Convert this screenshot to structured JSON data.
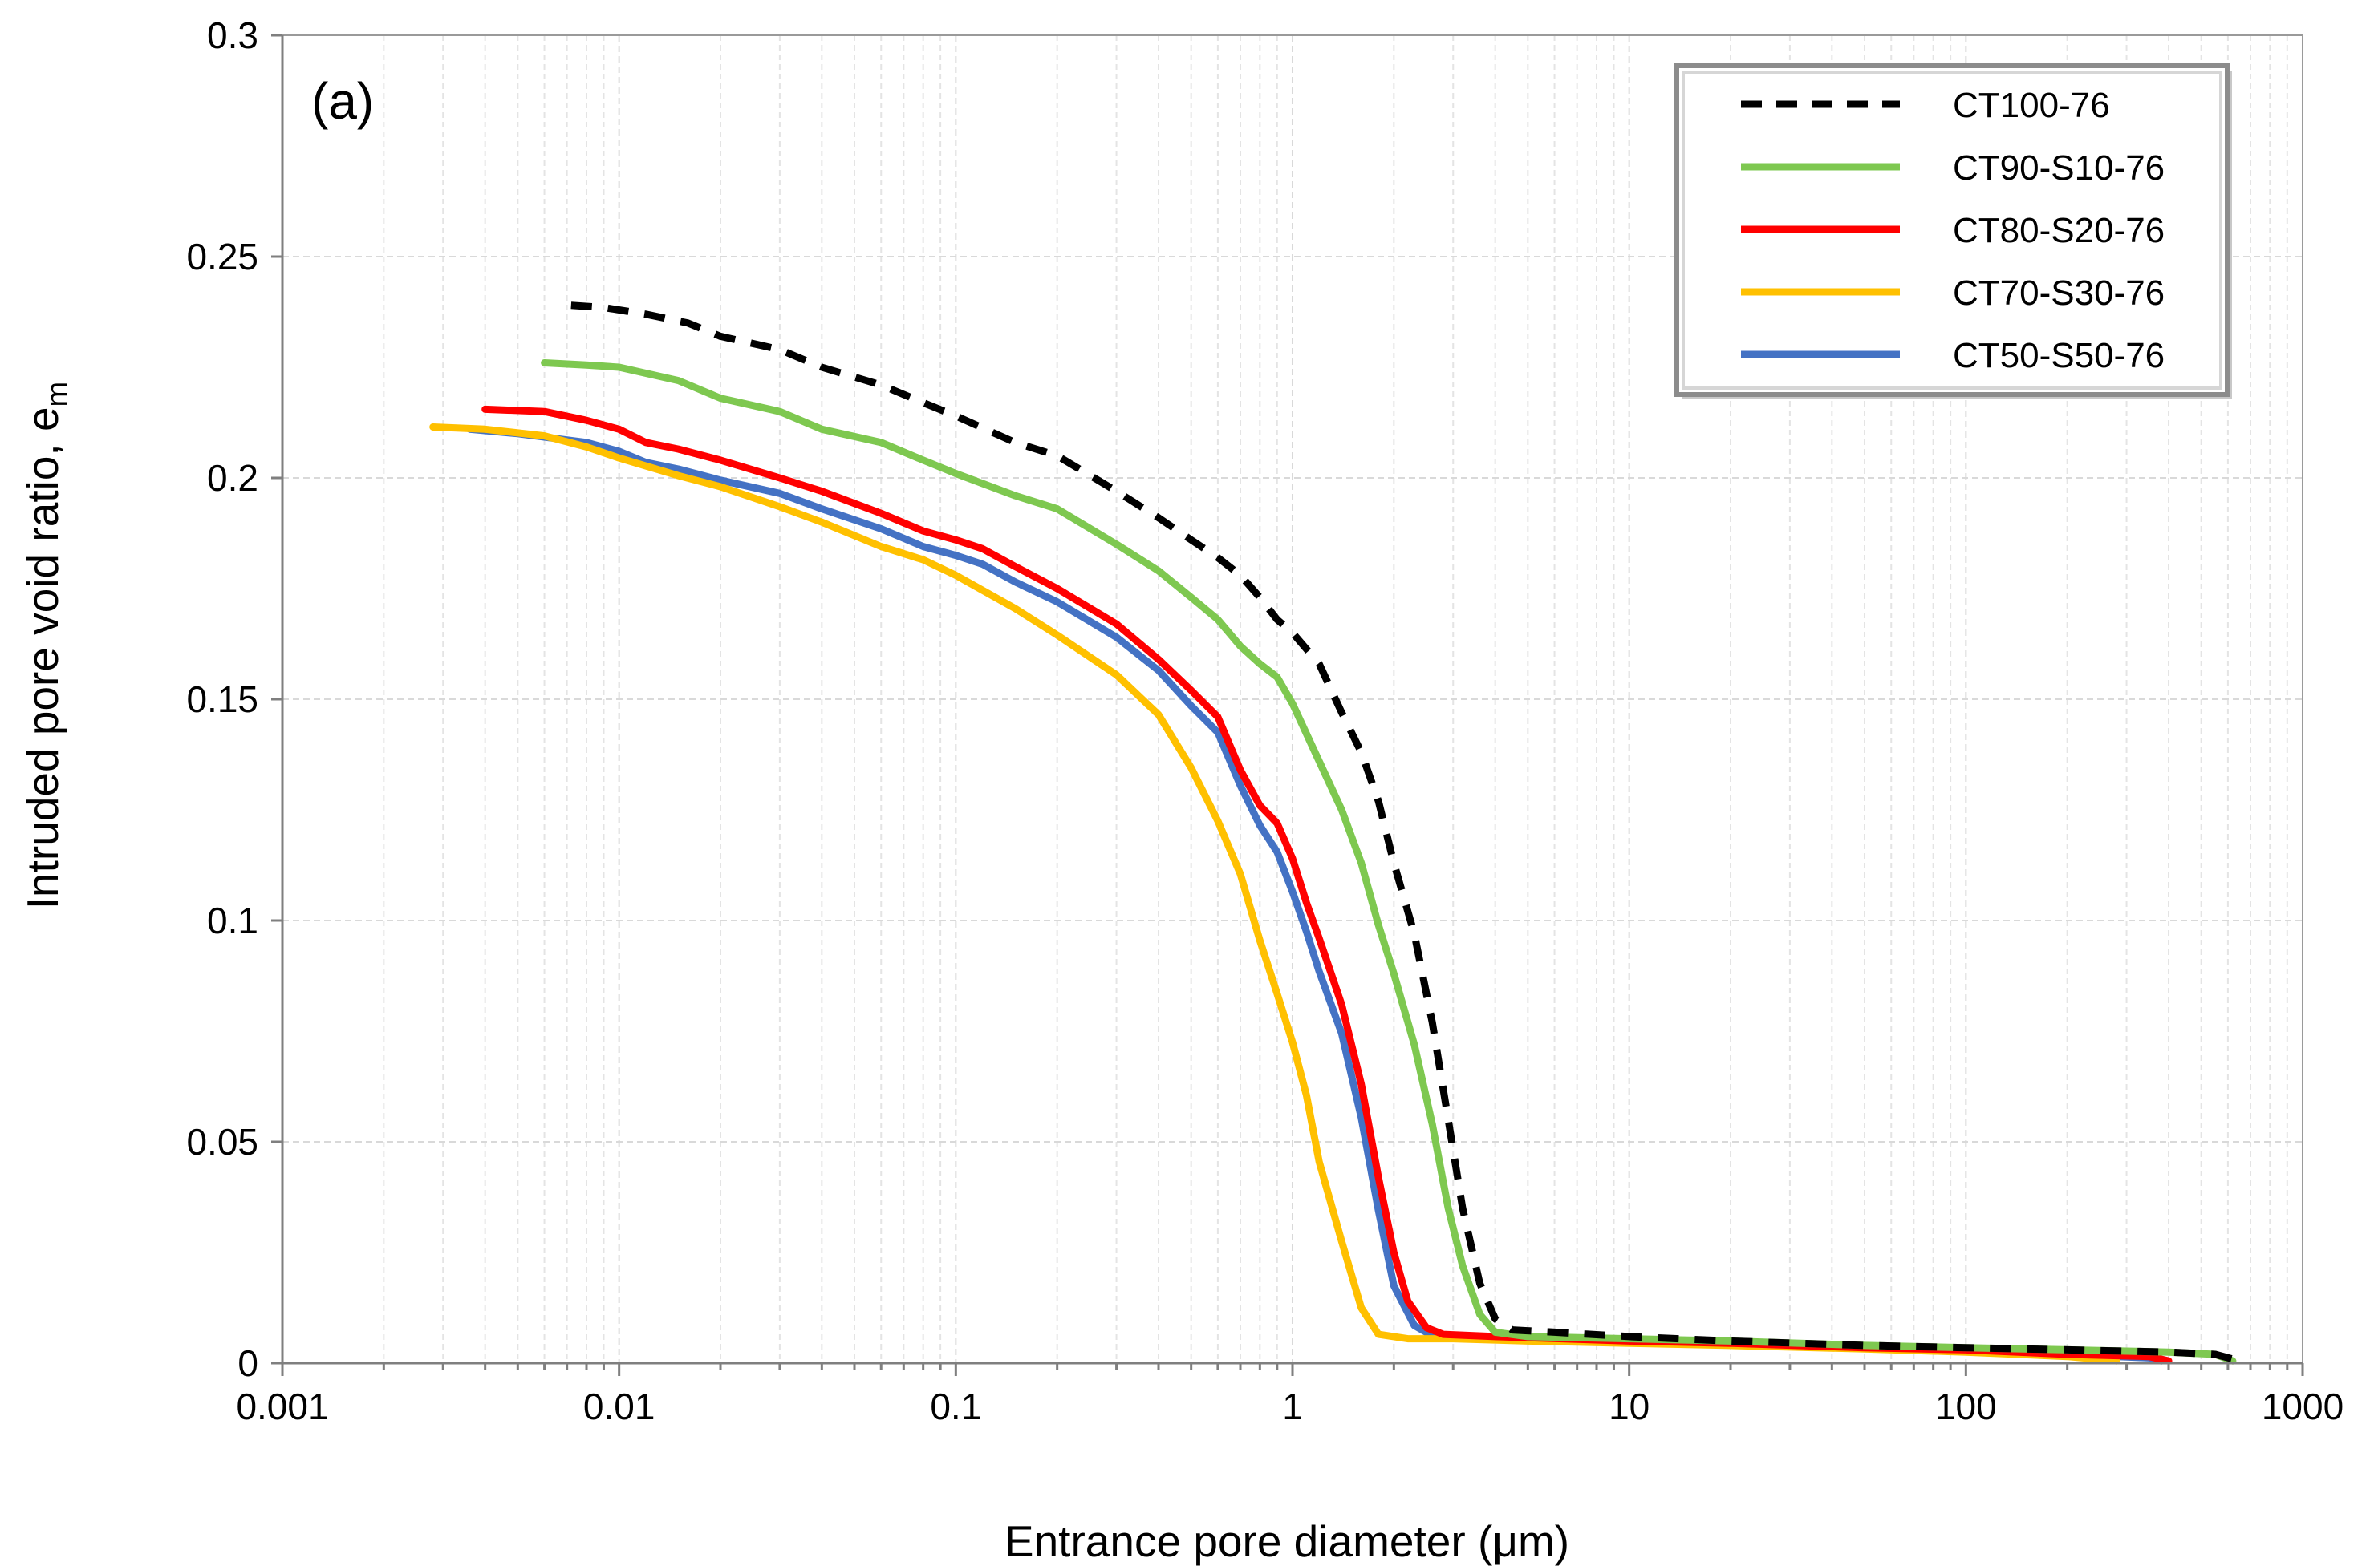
{
  "chart_data": {
    "type": "line",
    "panel_label": "(a)",
    "xlabel": "Entrance pore diameter (μm)",
    "ylabel_main": "Intruded pore void ratio, e",
    "ylabel_sub": "m",
    "xscale": "log",
    "xlim": [
      0.001,
      1000
    ],
    "ylim": [
      0,
      0.3
    ],
    "xticks": [
      0.001,
      0.01,
      0.1,
      1,
      10,
      100,
      1000
    ],
    "xtick_labels": [
      "0.001",
      "0.01",
      "0.1",
      "1",
      "10",
      "100",
      "1000"
    ],
    "yticks": [
      0,
      0.05,
      0.1,
      0.15,
      0.2,
      0.25,
      0.3
    ],
    "ytick_labels": [
      "0",
      "0.05",
      "0.1",
      "0.15",
      "0.2",
      "0.25",
      "0.3"
    ],
    "grid": true,
    "legend_position": "top-right",
    "series": [
      {
        "name": "CT100-76",
        "color": "#000000",
        "dashed": true,
        "points": [
          [
            0.0072,
            0.239
          ],
          [
            0.009,
            0.2385
          ],
          [
            0.012,
            0.237
          ],
          [
            0.016,
            0.235
          ],
          [
            0.02,
            0.232
          ],
          [
            0.03,
            0.229
          ],
          [
            0.04,
            0.225
          ],
          [
            0.06,
            0.221
          ],
          [
            0.08,
            0.217
          ],
          [
            0.1,
            0.214
          ],
          [
            0.15,
            0.208
          ],
          [
            0.2,
            0.205
          ],
          [
            0.3,
            0.197
          ],
          [
            0.4,
            0.191
          ],
          [
            0.5,
            0.186
          ],
          [
            0.6,
            0.182
          ],
          [
            0.7,
            0.178
          ],
          [
            0.8,
            0.173
          ],
          [
            0.9,
            0.168
          ],
          [
            1.0,
            0.165
          ],
          [
            1.2,
            0.158
          ],
          [
            1.4,
            0.147
          ],
          [
            1.6,
            0.138
          ],
          [
            1.8,
            0.127
          ],
          [
            2.0,
            0.113
          ],
          [
            2.3,
            0.097
          ],
          [
            2.6,
            0.077
          ],
          [
            2.9,
            0.055
          ],
          [
            3.2,
            0.035
          ],
          [
            3.6,
            0.018
          ],
          [
            4.0,
            0.01
          ],
          [
            4.5,
            0.0075
          ],
          [
            6,
            0.007
          ],
          [
            10,
            0.006
          ],
          [
            20,
            0.005
          ],
          [
            50,
            0.004
          ],
          [
            100,
            0.0035
          ],
          [
            200,
            0.003
          ],
          [
            400,
            0.0025
          ],
          [
            550,
            0.002
          ],
          [
            650,
            0.0005
          ]
        ]
      },
      {
        "name": "CT90-S10-76",
        "color": "#7ec850",
        "dashed": false,
        "points": [
          [
            0.006,
            0.226
          ],
          [
            0.008,
            0.2255
          ],
          [
            0.01,
            0.225
          ],
          [
            0.015,
            0.222
          ],
          [
            0.02,
            0.218
          ],
          [
            0.03,
            0.215
          ],
          [
            0.04,
            0.211
          ],
          [
            0.06,
            0.208
          ],
          [
            0.08,
            0.204
          ],
          [
            0.1,
            0.201
          ],
          [
            0.15,
            0.196
          ],
          [
            0.2,
            0.193
          ],
          [
            0.3,
            0.185
          ],
          [
            0.4,
            0.179
          ],
          [
            0.5,
            0.173
          ],
          [
            0.6,
            0.168
          ],
          [
            0.7,
            0.162
          ],
          [
            0.8,
            0.158
          ],
          [
            0.9,
            0.155
          ],
          [
            1.0,
            0.149
          ],
          [
            1.2,
            0.136
          ],
          [
            1.4,
            0.125
          ],
          [
            1.6,
            0.113
          ],
          [
            1.8,
            0.099
          ],
          [
            2.0,
            0.088
          ],
          [
            2.3,
            0.072
          ],
          [
            2.6,
            0.054
          ],
          [
            2.9,
            0.035
          ],
          [
            3.2,
            0.022
          ],
          [
            3.6,
            0.011
          ],
          [
            4.0,
            0.007
          ],
          [
            5,
            0.006
          ],
          [
            10,
            0.0055
          ],
          [
            20,
            0.005
          ],
          [
            50,
            0.004
          ],
          [
            100,
            0.0035
          ],
          [
            200,
            0.003
          ],
          [
            400,
            0.0025
          ],
          [
            550,
            0.002
          ],
          [
            620,
            0.0005
          ]
        ]
      },
      {
        "name": "CT80-S20-76",
        "color": "#ff0000",
        "dashed": false,
        "points": [
          [
            0.004,
            0.2155
          ],
          [
            0.006,
            0.215
          ],
          [
            0.008,
            0.213
          ],
          [
            0.01,
            0.211
          ],
          [
            0.012,
            0.208
          ],
          [
            0.015,
            0.2065
          ],
          [
            0.02,
            0.204
          ],
          [
            0.03,
            0.2
          ],
          [
            0.04,
            0.197
          ],
          [
            0.06,
            0.192
          ],
          [
            0.08,
            0.188
          ],
          [
            0.1,
            0.186
          ],
          [
            0.12,
            0.184
          ],
          [
            0.15,
            0.18
          ],
          [
            0.2,
            0.175
          ],
          [
            0.3,
            0.167
          ],
          [
            0.4,
            0.159
          ],
          [
            0.5,
            0.152
          ],
          [
            0.6,
            0.146
          ],
          [
            0.7,
            0.134
          ],
          [
            0.8,
            0.126
          ],
          [
            0.9,
            0.122
          ],
          [
            1.0,
            0.114
          ],
          [
            1.1,
            0.104
          ],
          [
            1.2,
            0.096
          ],
          [
            1.4,
            0.081
          ],
          [
            1.6,
            0.063
          ],
          [
            1.8,
            0.042
          ],
          [
            2.0,
            0.025
          ],
          [
            2.2,
            0.014
          ],
          [
            2.5,
            0.008
          ],
          [
            2.8,
            0.0065
          ],
          [
            4,
            0.006
          ],
          [
            10,
            0.005
          ],
          [
            20,
            0.0045
          ],
          [
            50,
            0.0035
          ],
          [
            100,
            0.003
          ],
          [
            200,
            0.002
          ],
          [
            350,
            0.0015
          ],
          [
            400,
            0.0005
          ]
        ]
      },
      {
        "name": "CT70-S30-76",
        "color": "#ffc000",
        "dashed": false,
        "points": [
          [
            0.0028,
            0.2115
          ],
          [
            0.004,
            0.211
          ],
          [
            0.006,
            0.2095
          ],
          [
            0.008,
            0.207
          ],
          [
            0.01,
            0.2045
          ],
          [
            0.015,
            0.2005
          ],
          [
            0.02,
            0.198
          ],
          [
            0.03,
            0.1935
          ],
          [
            0.04,
            0.19
          ],
          [
            0.06,
            0.1845
          ],
          [
            0.08,
            0.1815
          ],
          [
            0.1,
            0.178
          ],
          [
            0.15,
            0.1705
          ],
          [
            0.2,
            0.1645
          ],
          [
            0.3,
            0.1555
          ],
          [
            0.4,
            0.1465
          ],
          [
            0.5,
            0.1345
          ],
          [
            0.6,
            0.1225
          ],
          [
            0.7,
            0.1105
          ],
          [
            0.8,
            0.0955
          ],
          [
            0.9,
            0.0835
          ],
          [
            1.0,
            0.0725
          ],
          [
            1.1,
            0.0605
          ],
          [
            1.2,
            0.0455
          ],
          [
            1.4,
            0.0275
          ],
          [
            1.6,
            0.0125
          ],
          [
            1.8,
            0.0065
          ],
          [
            2.2,
            0.0055
          ],
          [
            3,
            0.0055
          ],
          [
            5,
            0.005
          ],
          [
            10,
            0.0045
          ],
          [
            20,
            0.004
          ],
          [
            50,
            0.0032
          ],
          [
            100,
            0.0025
          ],
          [
            200,
            0.0015
          ],
          [
            280,
            0.0005
          ]
        ]
      },
      {
        "name": "CT50-S50-76",
        "color": "#4472c4",
        "dashed": false,
        "points": [
          [
            0.0036,
            0.211
          ],
          [
            0.005,
            0.21
          ],
          [
            0.008,
            0.208
          ],
          [
            0.01,
            0.206
          ],
          [
            0.012,
            0.2035
          ],
          [
            0.015,
            0.202
          ],
          [
            0.02,
            0.1995
          ],
          [
            0.03,
            0.1965
          ],
          [
            0.04,
            0.193
          ],
          [
            0.06,
            0.1885
          ],
          [
            0.08,
            0.1845
          ],
          [
            0.1,
            0.1825
          ],
          [
            0.12,
            0.1805
          ],
          [
            0.15,
            0.1765
          ],
          [
            0.2,
            0.172
          ],
          [
            0.3,
            0.164
          ],
          [
            0.4,
            0.1565
          ],
          [
            0.5,
            0.1485
          ],
          [
            0.6,
            0.1425
          ],
          [
            0.7,
            0.1305
          ],
          [
            0.8,
            0.1215
          ],
          [
            0.9,
            0.1155
          ],
          [
            1.0,
            0.1065
          ],
          [
            1.1,
            0.0975
          ],
          [
            1.2,
            0.0885
          ],
          [
            1.4,
            0.0745
          ],
          [
            1.6,
            0.0555
          ],
          [
            1.8,
            0.0345
          ],
          [
            2.0,
            0.0175
          ],
          [
            2.3,
            0.0085
          ],
          [
            2.6,
            0.0062
          ],
          [
            3,
            0.006
          ],
          [
            5,
            0.0055
          ],
          [
            10,
            0.005
          ],
          [
            20,
            0.0045
          ],
          [
            50,
            0.0035
          ],
          [
            100,
            0.003
          ],
          [
            200,
            0.002
          ],
          [
            350,
            0.0012
          ],
          [
            380,
            0.0005
          ]
        ]
      }
    ]
  }
}
